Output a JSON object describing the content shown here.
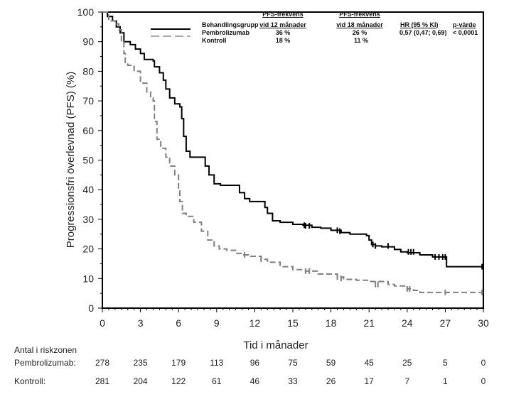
{
  "chart_data": {
    "type": "line",
    "subtype": "kaplan-meier",
    "title": "",
    "xlabel": "Tid i månader",
    "ylabel": "Progressionsfri överlevnad (PFS) (%)",
    "xlim": [
      0,
      30
    ],
    "ylim": [
      0,
      100
    ],
    "xticks": [
      0,
      3,
      6,
      9,
      12,
      15,
      18,
      21,
      24,
      27,
      30
    ],
    "yticks": [
      0,
      10,
      20,
      30,
      40,
      50,
      60,
      70,
      80,
      90,
      100
    ],
    "grid": false,
    "legend_position": "top-right",
    "legend": {
      "header": {
        "group": "Behandlingsgrupp",
        "pfs12_line1": "PFS-frekvens",
        "pfs12_line2": "vid 12 månader",
        "pfs18_line1": "PFS-frekvens",
        "pfs18_line2": "vid 18 månader",
        "hr": "HR (95 % KI)",
        "p": "p-värde"
      },
      "rows": [
        {
          "name": "Pembrolizumab",
          "pfs12": "36 %",
          "pfs18": "26 %",
          "hr": "0,57 (0,47; 0,69)",
          "p": "< 0,0001"
        },
        {
          "name": "Kontroll",
          "pfs12": "18 %",
          "pfs18": "11 %",
          "hr": "",
          "p": ""
        }
      ]
    },
    "series": [
      {
        "name": "Pembrolizumab",
        "color": "#000000",
        "style": "solid",
        "x": [
          0,
          0.4,
          0.8,
          1.1,
          1.4,
          1.7,
          2.2,
          2.6,
          3.0,
          3.3,
          4.0,
          4.1,
          4.5,
          4.8,
          5.0,
          5.3,
          5.7,
          6.1,
          6.25,
          6.4,
          6.6,
          6.9,
          7.8,
          8.1,
          8.4,
          8.8,
          9.3,
          10.5,
          10.8,
          11.2,
          11.6,
          12.4,
          12.8,
          13.0,
          13.4,
          14.0,
          15.0,
          15.8,
          16.5,
          17.2,
          18.0,
          18.8,
          19.5,
          20.8,
          21.0,
          21.2,
          21.5,
          22.0,
          23.0,
          23.5,
          24.0,
          25.0,
          26.0,
          27.0,
          27.1,
          30.0
        ],
        "y": [
          100,
          98.5,
          97,
          95,
          93,
          90,
          89,
          87.5,
          86,
          84,
          83.5,
          81.5,
          79.5,
          77,
          74,
          71,
          69,
          68,
          64,
          58,
          53,
          51,
          51,
          48,
          45,
          42,
          41.5,
          41.5,
          39,
          37,
          36,
          36,
          34,
          32,
          29.5,
          29,
          28.3,
          28,
          27.3,
          27,
          26.3,
          25.5,
          25,
          24.5,
          23,
          21.5,
          21,
          20.7,
          19.8,
          19,
          18.7,
          18,
          17.3,
          17.3,
          14,
          14
        ],
        "censor_x": [
          15.9,
          16.0,
          16.3,
          18.5,
          18.7,
          21.3,
          21.5,
          22.5,
          24.1,
          24.3,
          24.5,
          26.2,
          26.5,
          26.8,
          27.0,
          29.9
        ],
        "censor_y": [
          28,
          27.8,
          27.8,
          26.3,
          26,
          21.5,
          21,
          21,
          19,
          19,
          19,
          17.3,
          17.3,
          17.3,
          17.3,
          14
        ]
      },
      {
        "name": "Kontroll",
        "color": "#808080",
        "style": "dashed",
        "x": [
          0,
          0.5,
          1.0,
          1.3,
          1.5,
          1.7,
          1.8,
          2.0,
          2.5,
          3.0,
          3.5,
          3.8,
          4.0,
          4.1,
          4.3,
          4.6,
          5.0,
          5.3,
          5.7,
          6.0,
          6.1,
          6.3,
          6.6,
          7.2,
          7.8,
          8.3,
          8.8,
          9.2,
          9.8,
          10.5,
          11.0,
          11.5,
          12.5,
          13.0,
          14.0,
          15.0,
          16.0,
          17.0,
          18.5,
          19.0,
          20.0,
          21.0,
          22.5,
          23.0,
          24.0,
          24.5,
          25.0,
          30.0
        ],
        "y": [
          100,
          97,
          96,
          94,
          90,
          86,
          83,
          82,
          80,
          76,
          73,
          71,
          70,
          63,
          57,
          54,
          51,
          48,
          45,
          40,
          36,
          32,
          31,
          29,
          26,
          23,
          21,
          20,
          19.5,
          18.5,
          18,
          17.5,
          16.5,
          15.5,
          14,
          13,
          12.5,
          11.5,
          10.5,
          9.7,
          9.4,
          9,
          8,
          7.5,
          6.5,
          6,
          5.3,
          5.3
        ],
        "censor_x": [
          11.2,
          12.5,
          16.0,
          16.3,
          18.5,
          18.8,
          21.5,
          21.7,
          24.0,
          24.2,
          27.0,
          29.9
        ],
        "censor_y": [
          18,
          16.5,
          12.5,
          12.5,
          10.5,
          10,
          8,
          8,
          6.5,
          6.5,
          5.3,
          5.3
        ]
      }
    ],
    "risk_table": {
      "title": "Antal i riskzonen",
      "times": [
        0,
        3,
        6,
        9,
        12,
        15,
        18,
        21,
        24,
        27,
        30
      ],
      "rows": [
        {
          "label": "Pembrolizumab:",
          "values": [
            278,
            235,
            179,
            113,
            96,
            75,
            59,
            45,
            25,
            5,
            0
          ]
        },
        {
          "label": "Kontroll:",
          "values": [
            281,
            204,
            122,
            61,
            46,
            33,
            26,
            17,
            7,
            1,
            0
          ]
        }
      ]
    }
  }
}
